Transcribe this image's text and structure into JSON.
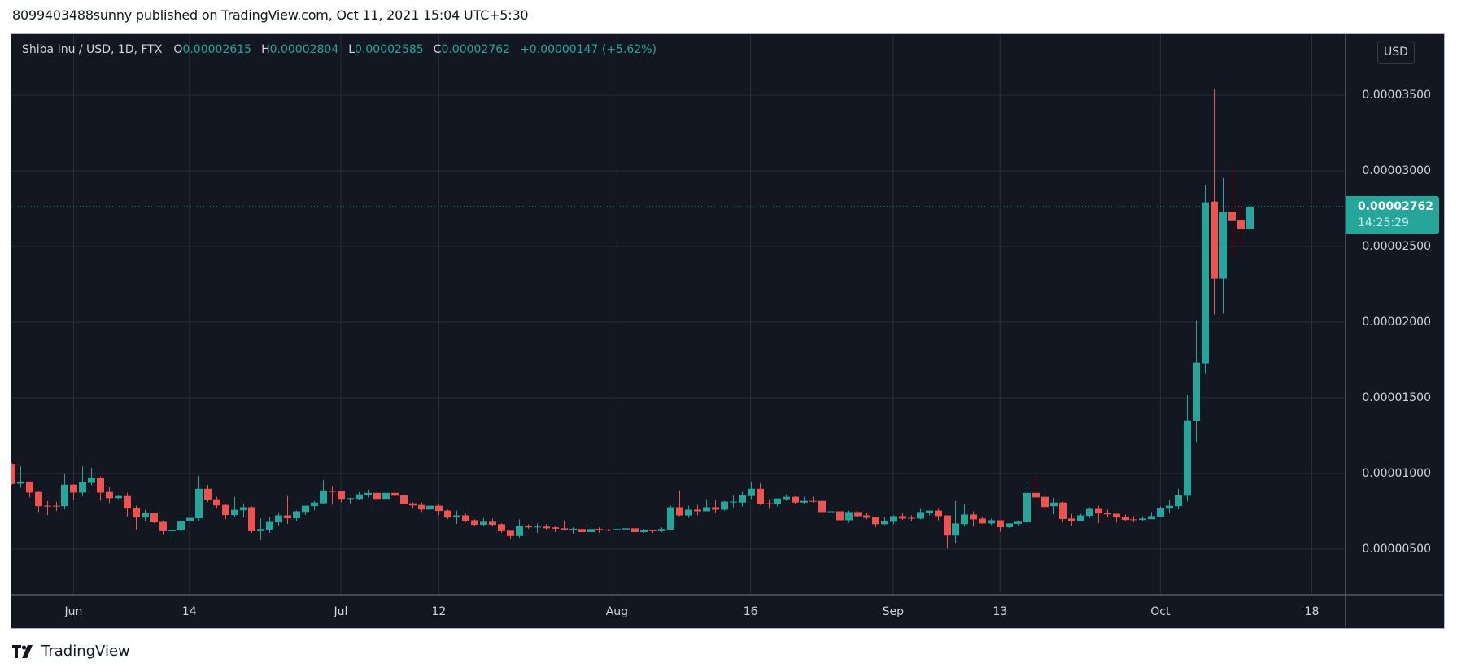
{
  "publish_line": "8099403488sunny published on TradingView.com, Oct 11, 2021 15:04 UTC+5:30",
  "legend": {
    "symbol": "Shiba Inu / USD, 1D, FTX",
    "open_label": "O",
    "open": "0.00002615",
    "high_label": "H",
    "high": "0.00002804",
    "low_label": "L",
    "low": "0.00002585",
    "close_label": "C",
    "close": "0.00002762",
    "change": "+0.00000147 (+5.62%)"
  },
  "currency_button": "USD",
  "price_axis": {
    "ticks": [
      "0.00003500",
      "0.00003000",
      "0.00002500",
      "0.00002000",
      "0.00001500",
      "0.00001000",
      "0.00000500"
    ],
    "current_price": "0.00002762",
    "countdown": "14:25:29"
  },
  "time_axis": {
    "labels": [
      "Jun",
      "14",
      "Jul",
      "12",
      "Aug",
      "16",
      "Sep",
      "13",
      "Oct",
      "18"
    ]
  },
  "brand": "TradingView",
  "colors": {
    "background": "#131722",
    "grid": "#2a2e39",
    "up": "#26a69a",
    "down": "#ef5350",
    "text": "#d1d4dc"
  },
  "chart_data": {
    "type": "candlestick",
    "title": "Shiba Inu / USD, 1D, FTX",
    "price_unit": 1e-08,
    "first_date": "2021-05-25",
    "last_date": "2021-10-11",
    "ylim": [
      2.3e-06,
      3.9e-05
    ],
    "yticks": [
      5e-06,
      1e-05,
      1.5e-05,
      2e-05,
      2.5e-05,
      3e-05,
      3.5e-05
    ],
    "xtick_dates": [
      "2021-06-01",
      "2021-06-14",
      "2021-07-01",
      "2021-07-12",
      "2021-08-01",
      "2021-08-16",
      "2021-09-01",
      "2021-09-13",
      "2021-10-01",
      "2021-10-18"
    ],
    "grid": true,
    "ohlc_fields": [
      "open",
      "high",
      "low",
      "close"
    ],
    "ohlc": [
      [
        1064,
        1070,
        925,
        931
      ],
      [
        933,
        1048,
        906,
        947
      ],
      [
        947,
        947,
        842,
        874
      ],
      [
        878,
        883,
        746,
        784
      ],
      [
        787,
        819,
        725,
        785
      ],
      [
        787,
        814,
        752,
        786
      ],
      [
        784,
        995,
        763,
        926
      ],
      [
        926,
        930,
        824,
        874
      ],
      [
        874,
        1048,
        851,
        942
      ],
      [
        938,
        1037,
        922,
        973
      ],
      [
        973,
        980,
        821,
        874
      ],
      [
        878,
        910,
        805,
        837
      ],
      [
        837,
        860,
        832,
        851
      ],
      [
        851,
        872,
        714,
        768
      ],
      [
        771,
        787,
        629,
        709
      ],
      [
        709,
        760,
        683,
        739
      ],
      [
        739,
        739,
        672,
        677
      ],
      [
        680,
        691,
        597,
        619
      ],
      [
        619,
        654,
        550,
        628
      ],
      [
        624,
        713,
        603,
        686
      ],
      [
        683,
        723,
        683,
        707
      ],
      [
        704,
        984,
        688,
        899
      ],
      [
        899,
        925,
        812,
        826
      ],
      [
        830,
        846,
        768,
        789
      ],
      [
        792,
        798,
        698,
        725
      ],
      [
        725,
        846,
        714,
        760
      ],
      [
        757,
        803,
        709,
        777
      ],
      [
        777,
        782,
        608,
        619
      ],
      [
        619,
        702,
        560,
        633
      ],
      [
        629,
        713,
        608,
        680
      ],
      [
        677,
        744,
        656,
        723
      ],
      [
        723,
        851,
        666,
        704
      ],
      [
        704,
        755,
        688,
        750
      ],
      [
        746,
        787,
        725,
        787
      ],
      [
        784,
        819,
        757,
        808
      ],
      [
        803,
        957,
        798,
        888
      ],
      [
        886,
        918,
        794,
        879
      ],
      [
        883,
        883,
        810,
        832
      ],
      [
        833,
        840,
        800,
        837
      ],
      [
        832,
        878,
        826,
        862
      ],
      [
        858,
        894,
        842,
        872
      ],
      [
        872,
        872,
        810,
        832
      ],
      [
        832,
        931,
        826,
        872
      ],
      [
        872,
        894,
        847,
        853
      ],
      [
        856,
        856,
        778,
        800
      ],
      [
        803,
        810,
        768,
        789
      ],
      [
        792,
        808,
        746,
        762
      ],
      [
        762,
        798,
        752,
        787
      ],
      [
        787,
        798,
        725,
        752
      ],
      [
        755,
        761,
        699,
        709
      ],
      [
        709,
        755,
        667,
        723
      ],
      [
        723,
        734,
        677,
        688
      ],
      [
        691,
        697,
        651,
        661
      ],
      [
        661,
        707,
        656,
        681
      ],
      [
        681,
        702,
        656,
        661
      ],
      [
        665,
        670,
        608,
        619
      ],
      [
        622,
        622,
        566,
        587
      ],
      [
        587,
        697,
        576,
        654
      ],
      [
        654,
        665,
        635,
        644
      ],
      [
        645,
        670,
        608,
        649
      ],
      [
        649,
        665,
        629,
        638
      ],
      [
        644,
        654,
        613,
        635
      ],
      [
        638,
        691,
        624,
        628
      ],
      [
        631,
        644,
        603,
        635
      ],
      [
        633,
        638,
        608,
        613
      ],
      [
        613,
        654,
        608,
        633
      ],
      [
        633,
        644,
        608,
        624
      ],
      [
        628,
        633,
        619,
        624
      ],
      [
        624,
        670,
        624,
        633
      ],
      [
        630,
        644,
        619,
        638
      ],
      [
        638,
        644,
        610,
        613
      ],
      [
        613,
        633,
        608,
        628
      ],
      [
        628,
        628,
        608,
        619
      ],
      [
        619,
        644,
        613,
        633
      ],
      [
        629,
        787,
        629,
        777
      ],
      [
        777,
        888,
        718,
        723
      ],
      [
        723,
        787,
        707,
        761
      ],
      [
        761,
        792,
        723,
        750
      ],
      [
        750,
        830,
        750,
        777
      ],
      [
        777,
        824,
        739,
        761
      ],
      [
        761,
        819,
        755,
        814
      ],
      [
        810,
        856,
        776,
        814
      ],
      [
        808,
        878,
        782,
        856
      ],
      [
        851,
        947,
        830,
        899
      ],
      [
        899,
        936,
        792,
        798
      ],
      [
        803,
        830,
        766,
        800
      ],
      [
        798,
        835,
        782,
        835
      ],
      [
        830,
        862,
        819,
        846
      ],
      [
        846,
        851,
        798,
        808
      ],
      [
        808,
        846,
        798,
        819
      ],
      [
        819,
        846,
        808,
        814
      ],
      [
        819,
        824,
        723,
        745
      ],
      [
        746,
        771,
        713,
        750
      ],
      [
        750,
        761,
        675,
        691
      ],
      [
        691,
        755,
        675,
        745
      ],
      [
        745,
        750,
        713,
        718
      ],
      [
        723,
        739,
        697,
        707
      ],
      [
        713,
        713,
        644,
        665
      ],
      [
        665,
        713,
        660,
        686
      ],
      [
        681,
        723,
        665,
        718
      ],
      [
        718,
        739,
        697,
        702
      ],
      [
        707,
        723,
        686,
        704
      ],
      [
        702,
        766,
        697,
        745
      ],
      [
        739,
        755,
        723,
        755
      ],
      [
        755,
        766,
        691,
        718
      ],
      [
        723,
        723,
        505,
        590
      ],
      [
        590,
        819,
        537,
        670
      ],
      [
        665,
        798,
        649,
        729
      ],
      [
        729,
        750,
        649,
        697
      ],
      [
        702,
        713,
        670,
        670
      ],
      [
        670,
        702,
        660,
        691
      ],
      [
        691,
        691,
        614,
        645
      ],
      [
        645,
        670,
        640,
        670
      ],
      [
        667,
        691,
        656,
        681
      ],
      [
        677,
        942,
        651,
        872
      ],
      [
        872,
        963,
        805,
        842
      ],
      [
        846,
        862,
        757,
        778
      ],
      [
        784,
        840,
        730,
        808
      ],
      [
        808,
        814,
        677,
        699
      ],
      [
        702,
        734,
        656,
        683
      ],
      [
        683,
        734,
        683,
        723
      ],
      [
        720,
        777,
        704,
        766
      ],
      [
        766,
        787,
        672,
        736
      ],
      [
        739,
        761,
        709,
        730
      ],
      [
        734,
        734,
        677,
        709
      ],
      [
        713,
        729,
        688,
        693
      ],
      [
        697,
        718,
        677,
        693
      ],
      [
        693,
        718,
        688,
        702
      ],
      [
        698,
        745,
        698,
        718
      ],
      [
        714,
        782,
        714,
        771
      ],
      [
        768,
        824,
        736,
        787
      ],
      [
        784,
        899,
        763,
        856
      ],
      [
        853,
        1518,
        815,
        1351
      ],
      [
        1349,
        2013,
        1208,
        1733
      ],
      [
        1728,
        2905,
        1658,
        2792
      ],
      [
        2797,
        3539,
        2050,
        2287
      ],
      [
        2287,
        2953,
        2057,
        2728
      ],
      [
        2728,
        3018,
        2437,
        2668
      ],
      [
        2674,
        2787,
        2507,
        2615
      ],
      [
        2615,
        2804,
        2585,
        2762
      ]
    ]
  }
}
